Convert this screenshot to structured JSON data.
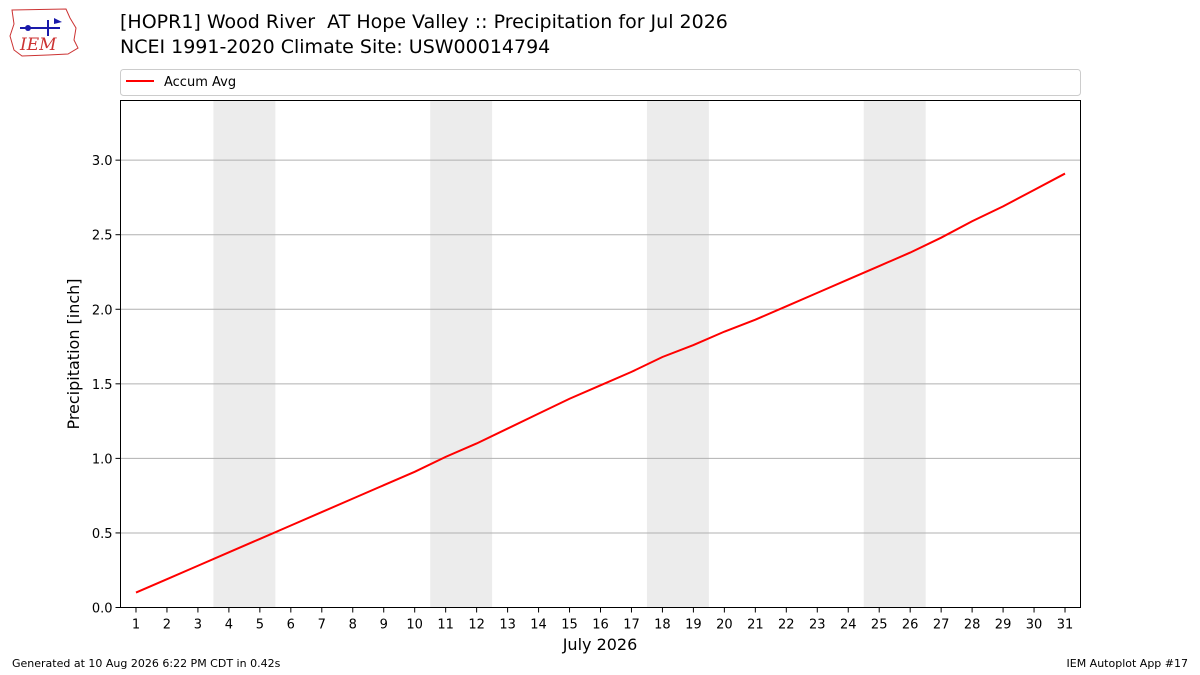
{
  "header": {
    "title_line1": "[HOPR1] Wood River  AT Hope Valley :: Precipitation for Jul 2026",
    "title_line2": "NCEI 1991-2020 Climate Site: USW00014794",
    "logo_text": "IEM"
  },
  "footer": {
    "left": "Generated at 10 Aug 2026 6:22 PM CDT in 0.42s",
    "right": "IEM Autoplot App #17"
  },
  "chart_data": {
    "type": "line",
    "xlabel": "July 2026",
    "ylabel": "Precipitation [inch]",
    "x": [
      1,
      2,
      3,
      4,
      5,
      6,
      7,
      8,
      9,
      10,
      11,
      12,
      13,
      14,
      15,
      16,
      17,
      18,
      19,
      20,
      21,
      22,
      23,
      24,
      25,
      26,
      27,
      28,
      29,
      30,
      31
    ],
    "xticks": [
      "1",
      "2",
      "3",
      "4",
      "5",
      "6",
      "7",
      "8",
      "9",
      "10",
      "11",
      "12",
      "13",
      "14",
      "15",
      "16",
      "17",
      "18",
      "19",
      "20",
      "21",
      "22",
      "23",
      "24",
      "25",
      "26",
      "27",
      "28",
      "29",
      "30",
      "31"
    ],
    "ylim": [
      0,
      3.4
    ],
    "yticks": [
      "0.0",
      "0.5",
      "1.0",
      "1.5",
      "2.0",
      "2.5",
      "3.0"
    ],
    "ytick_values": [
      0,
      0.5,
      1.0,
      1.5,
      2.0,
      2.5,
      3.0
    ],
    "grid": "horizontal",
    "legend": "top",
    "weekend_bands": [
      [
        4,
        5
      ],
      [
        11,
        12
      ],
      [
        18,
        19
      ],
      [
        25,
        26
      ]
    ],
    "series": [
      {
        "name": "Accum Avg",
        "color": "#ff0000",
        "values": [
          0.1,
          0.19,
          0.28,
          0.37,
          0.46,
          0.55,
          0.64,
          0.73,
          0.82,
          0.91,
          1.01,
          1.1,
          1.2,
          1.3,
          1.4,
          1.49,
          1.58,
          1.68,
          1.76,
          1.85,
          1.93,
          2.02,
          2.11,
          2.2,
          2.29,
          2.38,
          2.48,
          2.59,
          2.69,
          2.8,
          2.91
        ]
      }
    ]
  }
}
